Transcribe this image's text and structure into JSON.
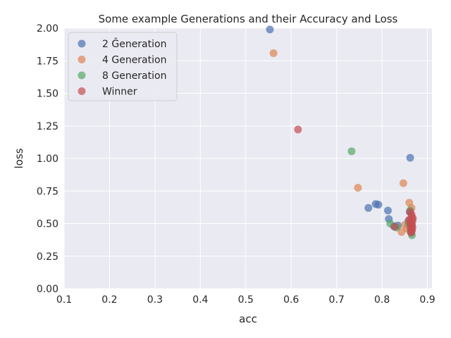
{
  "chart_data": {
    "type": "scatter",
    "title": "Some example Generations and their Accuracy and Loss",
    "xlabel": "acc",
    "ylabel": "loss",
    "xlim": [
      0.1,
      0.91
    ],
    "ylim": [
      0.0,
      2.0
    ],
    "xticks": [
      "0.1",
      "0.2",
      "0.3",
      "0.4",
      "0.5",
      "0.6",
      "0.7",
      "0.8",
      "0.9"
    ],
    "yticks": [
      "0.00",
      "0.25",
      "0.50",
      "0.75",
      "1.00",
      "1.25",
      "1.50",
      "1.75",
      "2.00"
    ],
    "grid": true,
    "legend_position": "top-left",
    "series": [
      {
        "name": "2 Ĝeneration",
        "color": "#4c72b0",
        "points": [
          [
            0.553,
            1.99
          ],
          [
            0.862,
            1.005
          ],
          [
            0.77,
            0.62
          ],
          [
            0.786,
            0.65
          ],
          [
            0.792,
            0.645
          ],
          [
            0.813,
            0.6
          ],
          [
            0.815,
            0.535
          ],
          [
            0.835,
            0.485
          ],
          [
            0.826,
            0.48
          ],
          [
            0.861,
            0.59
          ],
          [
            0.858,
            0.52
          ],
          [
            0.864,
            0.47
          ]
        ]
      },
      {
        "name": "4 Generation",
        "color": "#dd8452",
        "points": [
          [
            0.561,
            1.808
          ],
          [
            0.847,
            0.81
          ],
          [
            0.747,
            0.775
          ],
          [
            0.86,
            0.66
          ],
          [
            0.865,
            0.62
          ],
          [
            0.843,
            0.435
          ],
          [
            0.855,
            0.46
          ],
          [
            0.85,
            0.49
          ],
          [
            0.862,
            0.52
          ]
        ]
      },
      {
        "name": "8 Generation",
        "color": "#55a868",
        "points": [
          [
            0.733,
            1.055
          ],
          [
            0.818,
            0.5
          ],
          [
            0.832,
            0.47
          ],
          [
            0.862,
            0.6
          ],
          [
            0.858,
            0.5
          ],
          [
            0.863,
            0.44
          ],
          [
            0.866,
            0.41
          ],
          [
            0.864,
            0.43
          ]
        ]
      },
      {
        "name": "Winner",
        "color": "#c44e52",
        "points": [
          [
            0.615,
            1.222
          ],
          [
            0.828,
            0.475
          ],
          [
            0.862,
            0.59
          ],
          [
            0.865,
            0.57
          ],
          [
            0.866,
            0.55
          ],
          [
            0.86,
            0.53
          ],
          [
            0.867,
            0.52
          ],
          [
            0.863,
            0.51
          ],
          [
            0.865,
            0.5
          ],
          [
            0.866,
            0.49
          ],
          [
            0.864,
            0.48
          ],
          [
            0.867,
            0.47
          ],
          [
            0.863,
            0.46
          ],
          [
            0.866,
            0.45
          ],
          [
            0.865,
            0.44
          ],
          [
            0.864,
            0.43
          ],
          [
            0.862,
            0.5
          ],
          [
            0.868,
            0.54
          ]
        ]
      }
    ]
  }
}
